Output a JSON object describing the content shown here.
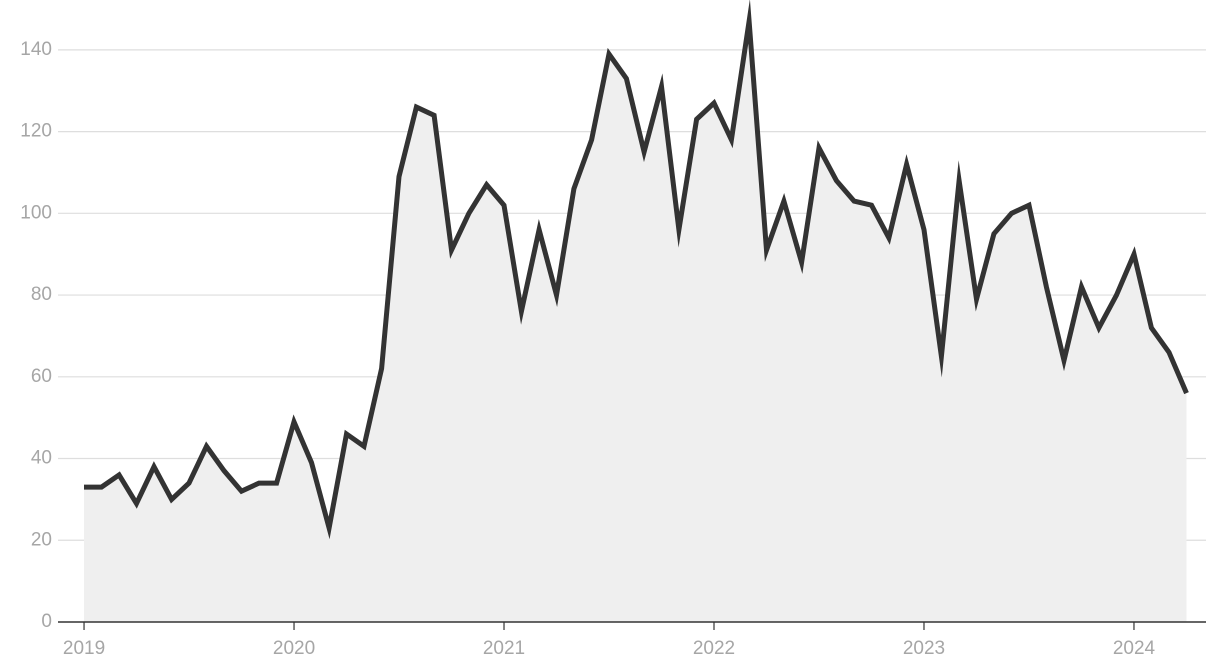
{
  "chart_data": {
    "type": "line",
    "x": [
      2019,
      2019.083,
      2019.167,
      2019.25,
      2019.333,
      2019.417,
      2019.5,
      2019.583,
      2019.667,
      2019.75,
      2019.833,
      2019.917,
      2020,
      2020.083,
      2020.167,
      2020.25,
      2020.333,
      2020.417,
      2020.5,
      2020.583,
      2020.667,
      2020.75,
      2020.833,
      2020.917,
      2021,
      2021.083,
      2021.167,
      2021.25,
      2021.333,
      2021.417,
      2021.5,
      2021.583,
      2021.667,
      2021.75,
      2021.833,
      2021.917,
      2022,
      2022.083,
      2022.167,
      2022.25,
      2022.333,
      2022.417,
      2022.5,
      2022.583,
      2022.667,
      2022.75,
      2022.833,
      2022.917,
      2023,
      2023.083,
      2023.167,
      2023.25,
      2023.333,
      2023.417,
      2023.5,
      2023.583,
      2023.667,
      2023.75,
      2023.833,
      2023.917,
      2024,
      2024.083,
      2024.167,
      2024.25
    ],
    "series": [
      {
        "color": "#333333",
        "area_color": "#efefef",
        "values": [
          33,
          33,
          36,
          29,
          38,
          30,
          34,
          43,
          37,
          32,
          34,
          34,
          49,
          39,
          23,
          46,
          43,
          62,
          109,
          126,
          124,
          91,
          100,
          107,
          102,
          76,
          96,
          80,
          106,
          118,
          139,
          133,
          115,
          131,
          96,
          123,
          127,
          118,
          147,
          91,
          103,
          88,
          116,
          108,
          103,
          102,
          94,
          112,
          96,
          65,
          108,
          79,
          95,
          100,
          102,
          82,
          64,
          82,
          72,
          80,
          90,
          72,
          66,
          56
        ]
      }
    ],
    "xlim": [
      2018.876,
      2024.343
    ],
    "xticks": [
      2019,
      2020,
      2021,
      2022,
      2023,
      2024
    ],
    "ylim": [
      0,
      150
    ],
    "yticks": [
      0,
      20,
      40,
      60,
      80,
      100,
      120,
      140
    ],
    "grid": true
  }
}
